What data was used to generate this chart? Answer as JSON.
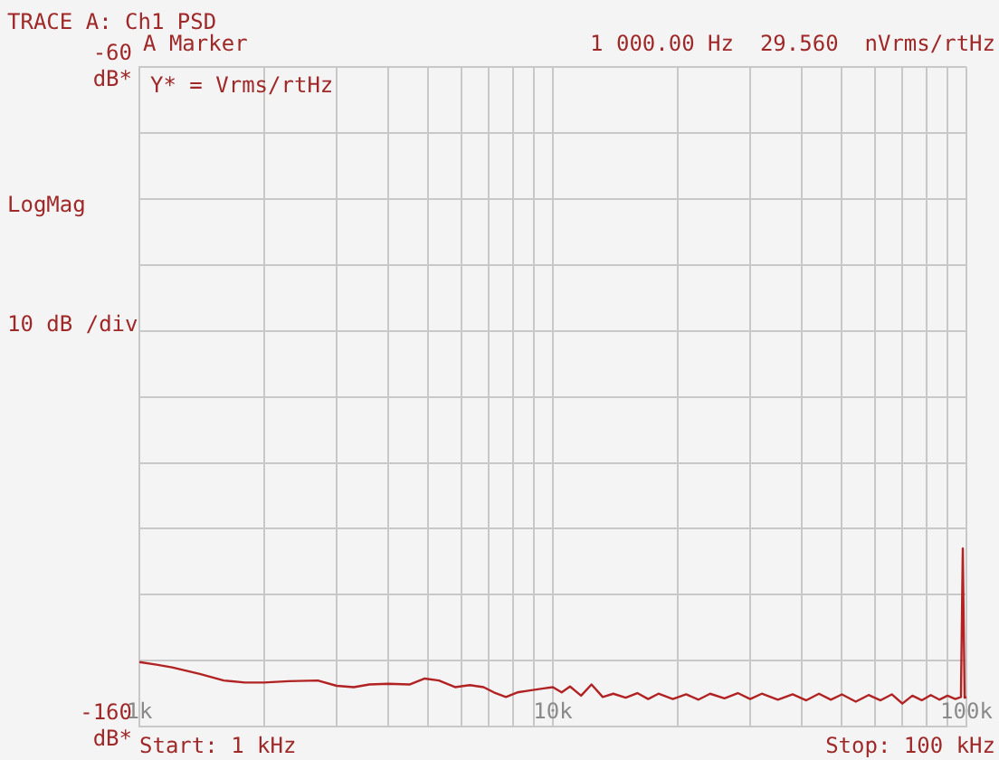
{
  "chart_data": {
    "type": "line",
    "title": "TRACE A: Ch1 PSD",
    "ylabel": "LogMag",
    "annotations": [
      "A Marker",
      "1 000.00 Hz  29.560  nVrms/rtHz",
      "Y* = Vrms/rtHz",
      "10 dB /div",
      "Start: 1 kHz",
      "Stop: 100 kHz"
    ],
    "x": [
      1000,
      1100,
      1200,
      1400,
      1600,
      1800,
      2000,
      2300,
      2700,
      3000,
      3300,
      3600,
      4000,
      4500,
      4900,
      5300,
      5800,
      6300,
      6800,
      7200,
      7700,
      8200,
      8800,
      9500,
      10000,
      10500,
      11000,
      11700,
      12400,
      13200,
      14000,
      15000,
      16000,
      17000,
      18000,
      19500,
      21000,
      22500,
      24000,
      26000,
      28000,
      30000,
      32000,
      35000,
      38000,
      41000,
      44000,
      47000,
      50000,
      54000,
      58000,
      62000,
      66000,
      70000,
      74000,
      78000,
      82000,
      86000,
      90000,
      94000,
      97000,
      98000,
      99000,
      100000
    ],
    "series": [
      {
        "color": "#b22222",
        "values": [
          -150.2,
          -150.6,
          -151.0,
          -152.0,
          -153.0,
          -153.3,
          -153.3,
          -153.1,
          -153.0,
          -153.8,
          -154.0,
          -153.6,
          -153.5,
          -153.6,
          -152.7,
          -153.0,
          -154.0,
          -153.7,
          -154.0,
          -154.8,
          -155.5,
          -154.8,
          -154.5,
          -154.2,
          -154.0,
          -154.8,
          -153.9,
          -155.3,
          -153.6,
          -155.5,
          -155.0,
          -155.6,
          -154.9,
          -155.8,
          -155.0,
          -155.8,
          -155.1,
          -155.9,
          -155.0,
          -155.7,
          -154.9,
          -155.8,
          -155.0,
          -155.9,
          -155.1,
          -156.0,
          -155.0,
          -155.9,
          -155.1,
          -156.2,
          -155.2,
          -156.0,
          -155.1,
          -156.5,
          -155.3,
          -156.0,
          -155.2,
          -155.9,
          -155.3,
          -155.8,
          -155.5,
          -133,
          -155.6,
          -155.5
        ]
      }
    ],
    "log": "x",
    "xlim": [
      1000,
      100000
    ],
    "xticks": [
      {
        "value": 1000,
        "label": "1k"
      },
      {
        "value": 2000,
        "label": null
      },
      {
        "value": 3000,
        "label": null
      },
      {
        "value": 4000,
        "label": null
      },
      {
        "value": 5000,
        "label": null
      },
      {
        "value": 6000,
        "label": null
      },
      {
        "value": 7000,
        "label": null
      },
      {
        "value": 8000,
        "label": null
      },
      {
        "value": 9000,
        "label": null
      },
      {
        "value": 10000,
        "label": "10k"
      },
      {
        "value": 20000,
        "label": null
      },
      {
        "value": 30000,
        "label": null
      },
      {
        "value": 40000,
        "label": null
      },
      {
        "value": 50000,
        "label": null
      },
      {
        "value": 60000,
        "label": null
      },
      {
        "value": 70000,
        "label": null
      },
      {
        "value": 80000,
        "label": null
      },
      {
        "value": 90000,
        "label": null
      },
      {
        "value": 100000,
        "label": "100k"
      }
    ],
    "ylim": [
      -160,
      -60
    ],
    "yticks": [
      {
        "value": -160,
        "label": "-160 dB*"
      },
      {
        "value": -150,
        "label": null
      },
      {
        "value": -140,
        "label": null
      },
      {
        "value": -130,
        "label": null
      },
      {
        "value": -120,
        "label": null
      },
      {
        "value": -110,
        "label": null
      },
      {
        "value": -100,
        "label": null
      },
      {
        "value": -90,
        "label": null
      },
      {
        "value": -80,
        "label": null
      },
      {
        "value": -70,
        "label": null
      },
      {
        "value": -60,
        "label": "-60 dB*"
      }
    ],
    "grid": true,
    "legend": false,
    "marker": "none",
    "line_style": "solid"
  }
}
